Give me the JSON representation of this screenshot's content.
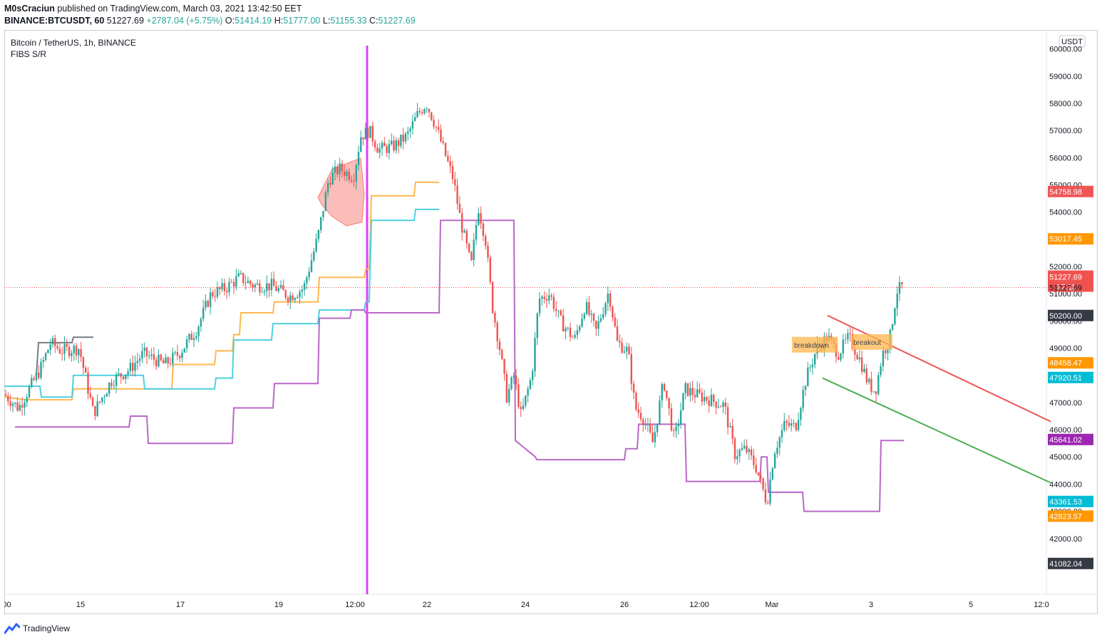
{
  "header": {
    "author": "M0sCraciun",
    "published_text": "published on TradingView.com, March 03, 2021 13:42:50 EET",
    "symbol_line": {
      "symbol": "BINANCE:BTCUSDT, 60",
      "price": "51227.69",
      "change": "+2787.04 (+5.75%)",
      "o_label": "O:",
      "o": "51414.19",
      "h_label": "H:",
      "h": "51777.00",
      "l_label": "L:",
      "l": "51155.33",
      "c_label": "C:",
      "c": "51227.69"
    }
  },
  "legend": {
    "title": "Bitcoin / TetherUS, 1h, BINANCE",
    "indicator": "FIBS S/R"
  },
  "footer": {
    "brand": "TradingView"
  },
  "colors": {
    "up": "#26a69a",
    "down": "#ef5350",
    "orange": "#ffb74d",
    "cyan": "#4dd0e1",
    "purple": "#ba68c8",
    "grey": "#787b86",
    "vline": "#e040fb",
    "trend_red": "#f05555",
    "trend_green": "#4caf50"
  },
  "chart_data": {
    "type": "candlestick",
    "currency_label": "USDT",
    "y_ticks": [
      40000,
      41000,
      42000,
      43000,
      44000,
      45000,
      46000,
      47000,
      48000,
      49000,
      50000,
      51000,
      52000,
      53000,
      54000,
      55000,
      56000,
      57000,
      58000,
      59000,
      60000
    ],
    "ylim": [
      39950,
      60700
    ],
    "x_tick_labels": [
      ":00",
      "15",
      "17",
      "19",
      "12:00",
      "22",
      "24",
      "26",
      "12:00",
      "Mar",
      "3",
      "5",
      "12:0"
    ],
    "price_labels": [
      {
        "text": "54758.98",
        "value": 54758.98,
        "color": "#f05555"
      },
      {
        "text": "53017.45",
        "value": 53017.45,
        "color": "#ff9800"
      },
      {
        "text": "51227.69",
        "sub": "17:11",
        "value": 51227.69,
        "color": "#ef5350"
      },
      {
        "text": "51227.69",
        "value": 51227.69,
        "color": "plain"
      },
      {
        "text": "50200.00",
        "value": 50200.0,
        "color": "#363a45"
      },
      {
        "text": "48458.47",
        "value": 48458.47,
        "color": "#ff9800"
      },
      {
        "text": "47920.51",
        "value": 47920.51,
        "color": "#00bcd4"
      },
      {
        "text": "45641.02",
        "value": 45641.02,
        "color": "#9c27b0"
      },
      {
        "text": "43361.53",
        "value": 43361.53,
        "color": "#00bcd4"
      },
      {
        "text": "42823.57",
        "value": 42823.57,
        "color": "#ff9800"
      },
      {
        "text": "41082.04",
        "value": 41082.04,
        "color": "#363a45"
      }
    ],
    "last_price": 51227.69,
    "closes": [
      [
        0,
        47300
      ],
      [
        20,
        46800
      ],
      [
        50,
        48200
      ],
      [
        65,
        49200
      ],
      [
        80,
        48900
      ],
      [
        105,
        49000
      ],
      [
        125,
        46600
      ],
      [
        150,
        47800
      ],
      [
        175,
        48200
      ],
      [
        195,
        48800
      ],
      [
        225,
        48400
      ],
      [
        245,
        48800
      ],
      [
        270,
        49700
      ],
      [
        290,
        51000
      ],
      [
        310,
        51200
      ],
      [
        330,
        51600
      ],
      [
        350,
        51300
      ],
      [
        375,
        51300
      ],
      [
        400,
        50900
      ],
      [
        420,
        51200
      ],
      [
        440,
        53100
      ],
      [
        455,
        55200
      ],
      [
        470,
        55600
      ],
      [
        490,
        55300
      ],
      [
        500,
        56800
      ],
      [
        512,
        57000
      ],
      [
        525,
        56300
      ],
      [
        545,
        56400
      ],
      [
        565,
        56800
      ],
      [
        580,
        57600
      ],
      [
        592,
        58000
      ],
      [
        605,
        57200
      ],
      [
        620,
        56000
      ],
      [
        630,
        55200
      ],
      [
        640,
        53700
      ],
      [
        655,
        52000
      ],
      [
        665,
        54200
      ],
      [
        675,
        53000
      ],
      [
        685,
        50500
      ],
      [
        695,
        49000
      ],
      [
        705,
        47200
      ],
      [
        715,
        48000
      ],
      [
        725,
        46500
      ],
      [
        740,
        48000
      ],
      [
        750,
        50800
      ],
      [
        765,
        51000
      ],
      [
        780,
        50000
      ],
      [
        800,
        49300
      ],
      [
        815,
        50600
      ],
      [
        830,
        49600
      ],
      [
        848,
        51100
      ],
      [
        860,
        49200
      ],
      [
        875,
        48900
      ],
      [
        885,
        46800
      ],
      [
        895,
        46500
      ],
      [
        910,
        45500
      ],
      [
        925,
        47800
      ],
      [
        940,
        45600
      ],
      [
        955,
        47500
      ],
      [
        970,
        47300
      ],
      [
        990,
        47100
      ],
      [
        1010,
        46900
      ],
      [
        1025,
        45100
      ],
      [
        1040,
        45300
      ],
      [
        1055,
        44600
      ],
      [
        1070,
        43300
      ],
      [
        1080,
        45200
      ],
      [
        1095,
        46200
      ],
      [
        1110,
        46100
      ],
      [
        1125,
        47900
      ],
      [
        1140,
        49000
      ],
      [
        1155,
        49400
      ],
      [
        1170,
        48800
      ],
      [
        1185,
        49400
      ],
      [
        1200,
        48600
      ],
      [
        1212,
        47700
      ],
      [
        1222,
        47400
      ],
      [
        1232,
        48800
      ],
      [
        1242,
        49300
      ],
      [
        1252,
        51100
      ],
      [
        1262,
        51300
      ]
    ],
    "fib_levels": [
      {
        "name": "orange",
        "color": "#ffb74d",
        "steps": [
          [
            0,
            47200
          ],
          [
            30,
            47100
          ],
          [
            95,
            47100
          ],
          [
            97,
            47500
          ],
          [
            235,
            47500
          ],
          [
            237,
            48400
          ],
          [
            295,
            48400
          ],
          [
            297,
            48900
          ],
          [
            320,
            48900
          ],
          [
            322,
            49500
          ],
          [
            330,
            49500
          ],
          [
            332,
            50300
          ],
          [
            377,
            50300
          ],
          [
            379,
            50700
          ],
          [
            440,
            50700
          ],
          [
            442,
            51600
          ],
          [
            505,
            51600
          ],
          [
            507,
            51900
          ],
          [
            512,
            51900
          ],
          [
            515,
            54600
          ],
          [
            575,
            54600
          ],
          [
            577,
            55100
          ],
          [
            610,
            55100
          ]
        ]
      },
      {
        "name": "cyan",
        "color": "#4dd0e1",
        "steps": [
          [
            0,
            47600
          ],
          [
            50,
            47600
          ],
          [
            52,
            47200
          ],
          [
            95,
            47200
          ],
          [
            97,
            48000
          ],
          [
            195,
            48000
          ],
          [
            197,
            47500
          ],
          [
            295,
            47500
          ],
          [
            297,
            47900
          ],
          [
            320,
            47900
          ],
          [
            322,
            49300
          ],
          [
            375,
            49300
          ],
          [
            377,
            49900
          ],
          [
            440,
            49900
          ],
          [
            442,
            50400
          ],
          [
            505,
            50400
          ],
          [
            507,
            50700
          ],
          [
            512,
            50700
          ],
          [
            515,
            53700
          ],
          [
            575,
            53700
          ],
          [
            577,
            54100
          ],
          [
            610,
            54100
          ]
        ]
      },
      {
        "name": "purple",
        "color": "#ba68c8",
        "steps": [
          [
            15,
            46100
          ],
          [
            120,
            46100
          ],
          [
            122,
            46100
          ],
          [
            175,
            46100
          ],
          [
            177,
            46500
          ],
          [
            200,
            46500
          ],
          [
            202,
            45500
          ],
          [
            320,
            45500
          ],
          [
            322,
            46800
          ],
          [
            377,
            46800
          ],
          [
            379,
            47700
          ],
          [
            440,
            47700
          ],
          [
            442,
            50100
          ],
          [
            485,
            50100
          ],
          [
            487,
            50400
          ],
          [
            505,
            50400
          ],
          [
            507,
            50300
          ],
          [
            610,
            50300
          ],
          [
            612,
            53700
          ],
          [
            715,
            53700
          ],
          [
            717,
            45600
          ],
          [
            745,
            45000
          ],
          [
            747,
            44900
          ],
          [
            870,
            44900
          ],
          [
            872,
            45300
          ],
          [
            888,
            45300
          ],
          [
            890,
            46200
          ],
          [
            955,
            46200
          ],
          [
            957,
            44100
          ],
          [
            1060,
            44100
          ],
          [
            1062,
            45000
          ],
          [
            1070,
            45000
          ],
          [
            1072,
            43700
          ],
          [
            1120,
            43700
          ],
          [
            1122,
            43000
          ],
          [
            1228,
            43000
          ],
          [
            1230,
            45600
          ],
          [
            1262,
            45600
          ]
        ]
      },
      {
        "name": "grey",
        "color": "#787b86",
        "steps": [
          [
            45,
            48000
          ],
          [
            48,
            49200
          ],
          [
            95,
            49200
          ],
          [
            97,
            49400
          ],
          [
            125,
            49400
          ]
        ]
      }
    ],
    "trendlines": [
      {
        "name": "red",
        "color": "#f05555",
        "from": [
          1155,
          50200
        ],
        "to": [
          1468,
          46300
        ]
      },
      {
        "name": "green",
        "color": "#4caf50",
        "from": [
          1148,
          47900
        ],
        "to": [
          1468,
          44050
        ]
      }
    ],
    "labels": [
      {
        "text": "breakdown",
        "at": [
          1105,
          49100
        ]
      },
      {
        "text": "breakout",
        "at": [
          1188,
          49200
        ]
      }
    ]
  }
}
